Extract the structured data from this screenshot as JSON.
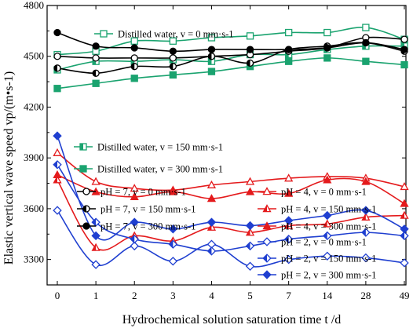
{
  "chart_data": {
    "type": "line",
    "x_labels": [
      "0",
      "1",
      "2",
      "3",
      "4",
      "5",
      "7",
      "14",
      "28",
      "49"
    ],
    "xlabel": "Hydrochemical solution saturation time t /d",
    "ylabel": "Elastic vertical wave speed vp/(m•s-1)",
    "ylim": [
      3150,
      4800
    ],
    "yticks": [
      3300,
      3600,
      3900,
      4200,
      4500,
      4800
    ],
    "grid": false,
    "legend_placement": "inside, three blocks: top-center, upper-left, upper-right",
    "series": [
      {
        "name": "Distilled water, v = 0 mm·s-1",
        "color": "#1aa36f",
        "marker": "square-open",
        "values": [
          4510,
          4530,
          4590,
          4590,
          4610,
          4620,
          4640,
          4640,
          4670,
          4600
        ]
      },
      {
        "name": "Distilled water, v = 150 mm·s-1",
        "color": "#1aa36f",
        "marker": "square-half",
        "values": [
          4420,
          4470,
          4470,
          4480,
          4470,
          4510,
          4510,
          4540,
          4560,
          4560
        ]
      },
      {
        "name": "Distilled water, v = 300 mm·s-1",
        "color": "#1aa36f",
        "marker": "square-filled",
        "values": [
          4310,
          4340,
          4370,
          4390,
          4410,
          4440,
          4470,
          4490,
          4470,
          4450
        ]
      },
      {
        "name": "pH = 7, v = 0 mm·s-1",
        "color": "#000000",
        "marker": "circle-open",
        "values": [
          4500,
          4490,
          4490,
          4490,
          4500,
          4510,
          4530,
          4550,
          4610,
          4600
        ]
      },
      {
        "name": "pH = 7, v = 150 mm·s-1",
        "color": "#000000",
        "marker": "circle-half",
        "values": [
          4430,
          4400,
          4440,
          4440,
          4500,
          4460,
          4540,
          4560,
          4580,
          4530
        ]
      },
      {
        "name": "pH = 7, v = 300 mm·s-1",
        "color": "#000000",
        "marker": "circle-filled",
        "values": [
          4640,
          4560,
          4550,
          4530,
          4540,
          4540,
          4540,
          4550,
          4580,
          4540
        ]
      },
      {
        "name": "pH = 4, v = 0 mm·s-1",
        "color": "#e41a1c",
        "marker": "triangle-open",
        "values": [
          3930,
          3760,
          3720,
          3710,
          3740,
          3760,
          3780,
          3790,
          3780,
          3730
        ]
      },
      {
        "name": "pH = 4, v = 150 mm·s-1",
        "color": "#e41a1c",
        "marker": "triangle-half",
        "values": [
          3770,
          3370,
          3440,
          3410,
          3490,
          3460,
          3500,
          3510,
          3550,
          3560
        ]
      },
      {
        "name": "pH = 4, v = 300 mm·s-1",
        "color": "#e41a1c",
        "marker": "triangle-filled",
        "values": [
          3800,
          3700,
          3670,
          3700,
          3660,
          3700,
          3690,
          3770,
          3760,
          3630
        ]
      },
      {
        "name": "pH = 2, v = 0 mm·s-1",
        "color": "#1f3fd0",
        "marker": "diamond-open",
        "values": [
          3590,
          3270,
          3380,
          3290,
          3390,
          3260,
          3300,
          3320,
          3310,
          3280
        ]
      },
      {
        "name": "pH = 2, v = 150 mm·s-1",
        "color": "#1f3fd0",
        "marker": "diamond-half",
        "values": [
          3860,
          3520,
          3420,
          3390,
          3350,
          3380,
          3420,
          3440,
          3460,
          3440
        ]
      },
      {
        "name": "pH = 2, v = 300 mm·s-1",
        "color": "#1f3fd0",
        "marker": "diamond-filled",
        "values": [
          4030,
          3440,
          3520,
          3480,
          3520,
          3500,
          3530,
          3560,
          3590,
          3480
        ]
      }
    ]
  }
}
